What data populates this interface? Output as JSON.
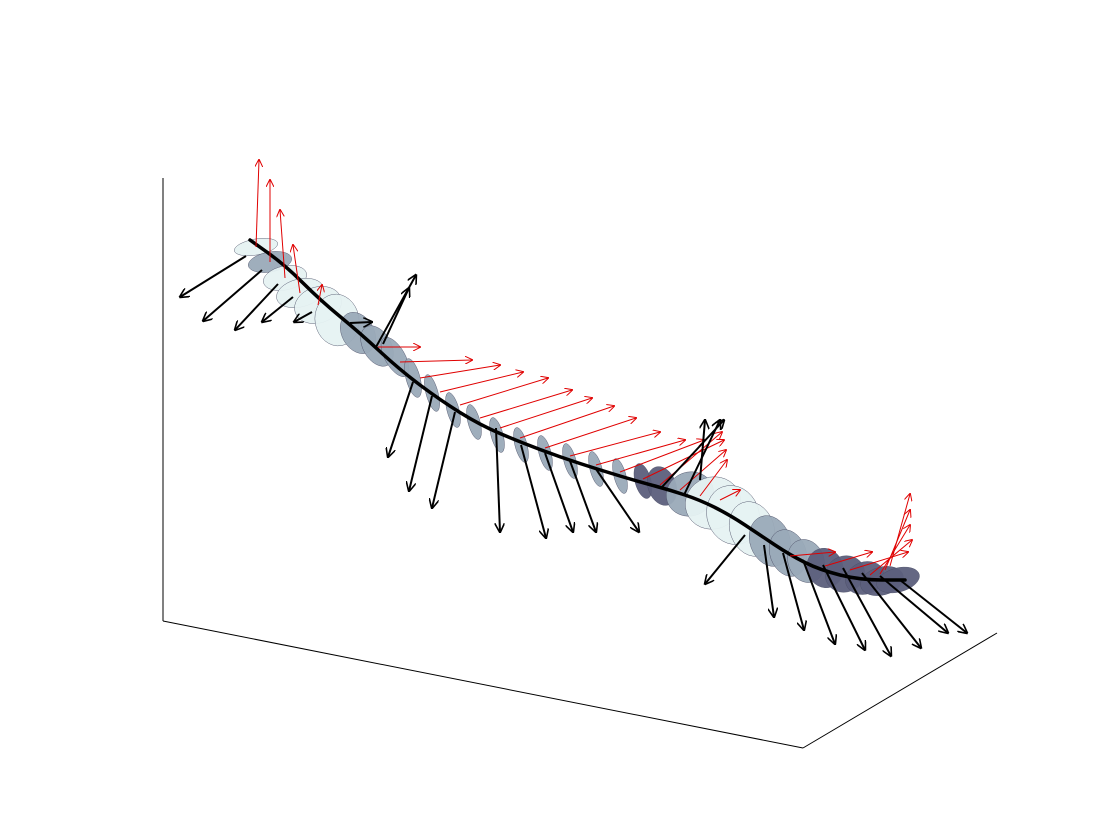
{
  "figure": {
    "colors": {
      "background": "#ffffff",
      "axis": "#000000",
      "curve": "#000000",
      "normal_vector": "#000000",
      "tangent_vector": "#e00000",
      "disk_light": "#e6f2f2",
      "disk_mid": "#9aaab8",
      "disk_dark": "#5c5f7c",
      "disk_edge": "#4a4e66"
    }
  }
}
